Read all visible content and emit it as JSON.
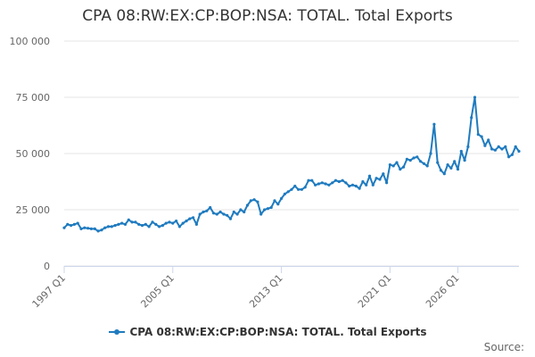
{
  "chart_data": {
    "type": "line",
    "title": "CPA 08:RW:EX:CP:BOP:NSA: TOTAL. Total Exports",
    "xlabel": "",
    "ylabel": "",
    "ylim": [
      0,
      100000
    ],
    "y_ticks": [
      "0",
      "25 000",
      "50 000",
      "75 000",
      "100 000"
    ],
    "y_tick_values": [
      0,
      25000,
      50000,
      75000,
      100000
    ],
    "x_ticks": [
      "1997 Q1",
      "2005 Q1",
      "2013 Q1",
      "2021 Q1",
      "2026 Q1"
    ],
    "x_tick_positions": [
      0,
      32,
      64,
      96,
      116
    ],
    "grid": "horizontal",
    "legend_position": "bottom",
    "series": [
      {
        "name": "CPA 08:RW:EX:CP:BOP:NSA: TOTAL. Total Exports",
        "color": "#1f7bbf",
        "x_start": "1997 Q1",
        "frequency": "quarterly",
        "values": [
          17000,
          18500,
          18000,
          18500,
          19000,
          16500,
          17000,
          16800,
          16500,
          16500,
          15500,
          16000,
          17000,
          17500,
          17500,
          18000,
          18500,
          19000,
          18500,
          20500,
          19500,
          19500,
          18500,
          18000,
          18500,
          17500,
          19500,
          18500,
          17500,
          18000,
          19000,
          19500,
          19000,
          20000,
          17500,
          19000,
          20000,
          21000,
          21500,
          18500,
          23000,
          24000,
          24500,
          26000,
          23500,
          23000,
          24000,
          23000,
          22500,
          21000,
          24000,
          23000,
          25000,
          24000,
          27000,
          29000,
          29500,
          28500,
          23000,
          25000,
          25500,
          26000,
          29000,
          27500,
          30000,
          32000,
          33000,
          34000,
          35500,
          34000,
          34000,
          35000,
          38000,
          38000,
          36000,
          36500,
          37000,
          36500,
          36000,
          37000,
          38000,
          37500,
          38000,
          37000,
          35500,
          36000,
          35500,
          34500,
          37500,
          36000,
          40000,
          36000,
          39000,
          38500,
          41000,
          37000,
          45000,
          44500,
          46000,
          43000,
          44000,
          47500,
          47000,
          48000,
          48500,
          46500,
          45500,
          44500,
          50000,
          63000,
          46000,
          42500,
          41000,
          45000,
          43500,
          46500,
          43000,
          51000,
          47000,
          53000,
          66000,
          75000,
          58500,
          57500,
          53500,
          56000,
          52000,
          51500,
          53000,
          52000,
          53000,
          48500,
          49500,
          53000,
          51000
        ]
      }
    ]
  },
  "legend": {
    "label": "CPA 08:RW:EX:CP:BOP:NSA: TOTAL. Total Exports"
  },
  "credits": {
    "label": "Source:"
  }
}
